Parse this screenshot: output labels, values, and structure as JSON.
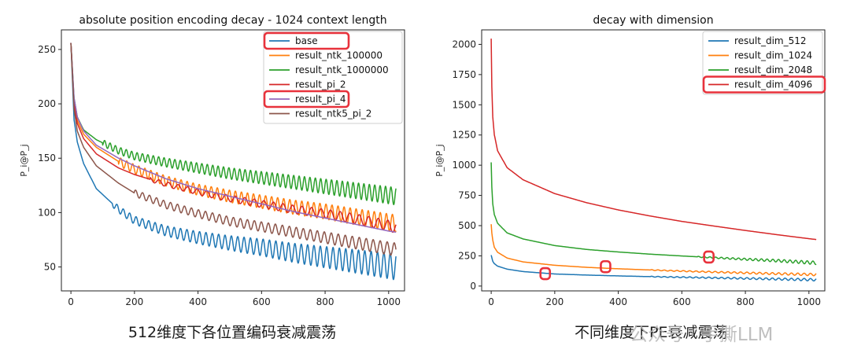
{
  "captions": {
    "left": "512维度下各位置编码衰减震荡",
    "right": "不同维度下PE衰减震荡"
  },
  "watermark": "公众号 · 手撕LLM",
  "chart_data": [
    {
      "type": "line",
      "title": "absolute position encoding decay - 1024 context length",
      "xlabel": "",
      "ylabel": "P_i@P_j",
      "xlim": [
        -30,
        1050
      ],
      "ylim": [
        28,
        268
      ],
      "xticks": [
        0,
        200,
        400,
        600,
        800,
        1000
      ],
      "yticks": [
        50,
        100,
        150,
        200,
        250
      ],
      "legend": "top-right",
      "highlighted_legend_entries": [
        "base",
        "result_pi_4"
      ],
      "series": [
        {
          "name": "base",
          "color": "#1f77b4",
          "start": 256,
          "x": [
            0,
            10,
            20,
            40,
            80,
            150,
            200,
            300,
            400,
            500,
            600,
            700,
            800,
            900,
            1000,
            1023
          ],
          "y": [
            256,
            185,
            165,
            145,
            122,
            103,
            93,
            83,
            77,
            72,
            68,
            63,
            59,
            55,
            51,
            50
          ],
          "osc_start": 130,
          "osc_amp": [
            3,
            12
          ],
          "osc_period": 20
        },
        {
          "name": "result_ntk_100000",
          "color": "#ff7f0e",
          "start": 256,
          "x": [
            0,
            10,
            20,
            40,
            80,
            150,
            200,
            300,
            400,
            500,
            600,
            700,
            800,
            900,
            1000,
            1023
          ],
          "y": [
            256,
            200,
            185,
            172,
            160,
            147,
            140,
            129,
            121,
            115,
            110,
            105,
            101,
            96,
            91,
            90
          ],
          "osc_start": 150,
          "osc_amp": [
            4,
            8
          ],
          "osc_period": 19
        },
        {
          "name": "result_ntk_1000000",
          "color": "#2ca02c",
          "start": 256,
          "x": [
            0,
            10,
            20,
            40,
            80,
            150,
            200,
            300,
            400,
            500,
            600,
            700,
            800,
            900,
            1000,
            1023
          ],
          "y": [
            256,
            205,
            188,
            176,
            167,
            157,
            152,
            146,
            141,
            136,
            132,
            128,
            124,
            120,
            116,
            115
          ],
          "osc_start": 100,
          "osc_amp": [
            3,
            8
          ],
          "osc_period": 17
        },
        {
          "name": "result_pi_2",
          "color": "#d62728",
          "start": 256,
          "x": [
            0,
            10,
            20,
            40,
            80,
            150,
            200,
            300,
            400,
            500,
            600,
            700,
            800,
            900,
            1000,
            1023
          ],
          "y": [
            256,
            200,
            182,
            168,
            154,
            141,
            135,
            126,
            119,
            113,
            108,
            103,
            99,
            94,
            88,
            86
          ],
          "osc_start": 250,
          "osc_amp": [
            2,
            5
          ],
          "osc_period": 30
        },
        {
          "name": "result_pi_4",
          "color": "#9467bd",
          "start": 256,
          "x": [
            0,
            10,
            20,
            40,
            80,
            150,
            200,
            300,
            400,
            500,
            600,
            700,
            800,
            900,
            1000,
            1023
          ],
          "y": [
            256,
            205,
            188,
            175,
            162,
            150,
            143,
            131,
            122,
            115,
            108,
            101,
            95,
            89,
            83,
            82
          ],
          "osc_start": 9999,
          "osc_amp": [
            0,
            0
          ],
          "osc_period": 30
        },
        {
          "name": "result_ntk5_pi_2",
          "color": "#8c564b",
          "start": 256,
          "x": [
            0,
            10,
            20,
            40,
            80,
            150,
            200,
            300,
            400,
            500,
            600,
            700,
            800,
            900,
            1000,
            1023
          ],
          "y": [
            256,
            195,
            175,
            160,
            143,
            127,
            118,
            107,
            99,
            92,
            87,
            82,
            77,
            72,
            67,
            66
          ],
          "osc_start": 200,
          "osc_amp": [
            3,
            6
          ],
          "osc_period": 22
        }
      ],
      "annotations": [
        {
          "label": "highlighted legend entry",
          "target": "base"
        },
        {
          "label": "highlighted legend entry",
          "target": "result_pi_4"
        }
      ]
    },
    {
      "type": "line",
      "title": "decay with dimension",
      "xlabel": "",
      "ylabel": "P_i@P_j",
      "xlim": [
        -30,
        1050
      ],
      "ylim": [
        -40,
        2120
      ],
      "xticks": [
        0,
        200,
        400,
        600,
        800,
        1000
      ],
      "yticks": [
        0,
        250,
        500,
        750,
        1000,
        1250,
        1500,
        1750,
        2000
      ],
      "legend": "top-right",
      "highlighted_legend_entries": [
        "result_dim_4096"
      ],
      "series": [
        {
          "name": "result_dim_512",
          "color": "#1f77b4",
          "x": [
            0,
            2,
            5,
            10,
            20,
            50,
            100,
            200,
            300,
            400,
            500,
            600,
            700,
            800,
            900,
            1000,
            1023
          ],
          "y": [
            256,
            235,
            205,
            185,
            165,
            140,
            120,
            100,
            91,
            84,
            78,
            73,
            68,
            63,
            58,
            53,
            52
          ],
          "osc_start": 500,
          "osc_amp": [
            3,
            10
          ],
          "osc_period": 20
        },
        {
          "name": "result_dim_1024",
          "color": "#ff7f0e",
          "x": [
            0,
            2,
            5,
            10,
            20,
            50,
            100,
            200,
            300,
            400,
            500,
            600,
            700,
            800,
            900,
            1000,
            1023
          ],
          "y": [
            512,
            440,
            380,
            320,
            280,
            232,
            200,
            172,
            155,
            143,
            133,
            124,
            116,
            109,
            102,
            96,
            95
          ],
          "osc_start": 500,
          "osc_amp": [
            3,
            10
          ],
          "osc_period": 20
        },
        {
          "name": "result_dim_2048",
          "color": "#2ca02c",
          "x": [
            0,
            2,
            5,
            10,
            20,
            50,
            100,
            200,
            300,
            400,
            500,
            600,
            700,
            800,
            900,
            1000,
            1023
          ],
          "y": [
            1024,
            820,
            680,
            590,
            520,
            440,
            390,
            335,
            303,
            282,
            264,
            249,
            235,
            222,
            210,
            195,
            192
          ],
          "osc_start": 650,
          "osc_amp": [
            4,
            14
          ],
          "osc_period": 18
        },
        {
          "name": "result_dim_4096",
          "color": "#d62728",
          "x": [
            0,
            2,
            5,
            10,
            20,
            50,
            100,
            200,
            300,
            400,
            500,
            600,
            700,
            800,
            900,
            1000,
            1023
          ],
          "y": [
            2048,
            1650,
            1400,
            1250,
            1120,
            980,
            880,
            765,
            690,
            630,
            580,
            535,
            497,
            460,
            425,
            392,
            385
          ],
          "osc_start": 9999,
          "osc_amp": [
            0,
            0
          ],
          "osc_period": 20
        }
      ],
      "annotations": [
        {
          "label": "circled oscillation onset",
          "series": "result_dim_512",
          "x": 170,
          "y": 103
        },
        {
          "label": "circled oscillation onset",
          "series": "result_dim_1024",
          "x": 360,
          "y": 160
        },
        {
          "label": "circled oscillation onset",
          "series": "result_dim_2048",
          "x": 685,
          "y": 240
        }
      ]
    }
  ]
}
